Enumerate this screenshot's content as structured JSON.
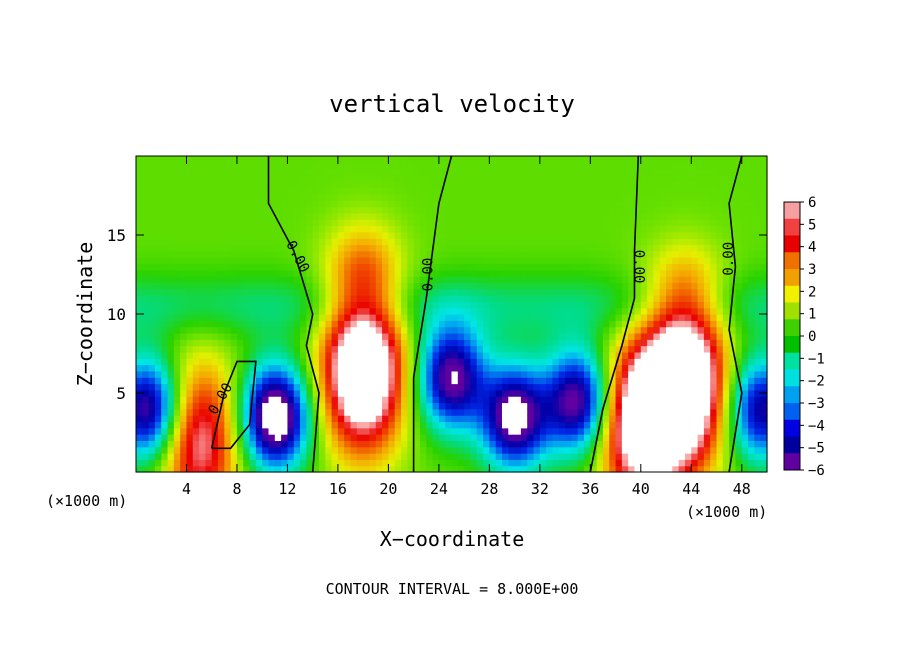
{
  "chart_data": {
    "type": "heatmap",
    "title": "vertical velocity",
    "xlabel": "X−coordinate",
    "ylabel": "Z−coordinate",
    "x_unit_left": "(×1000 m)",
    "x_unit_right": "(×1000 m)",
    "footer": "CONTOUR INTERVAL = 8.000E+00",
    "xlim": [
      0,
      50
    ],
    "ylim": [
      0,
      20
    ],
    "x_ticks": [
      4,
      8,
      12,
      16,
      20,
      24,
      28,
      32,
      36,
      40,
      44,
      48
    ],
    "y_ticks": [
      5,
      10,
      15
    ],
    "contour_label": "0.00",
    "colorbar": {
      "min": -6,
      "max": 6,
      "labels": [
        "6",
        "5",
        "4",
        "3",
        "2",
        "1",
        "0",
        "−1",
        "−2",
        "−3",
        "−4",
        "−5",
        "−6"
      ],
      "colors": [
        "#f4a0a0",
        "#f04040",
        "#e80000",
        "#f07000",
        "#f0a000",
        "#f0f000",
        "#a0e000",
        "#40d000",
        "#00c000",
        "#00e0a0",
        "#00e0e0",
        "#00a0f0",
        "#0060f0",
        "#0000e0",
        "#0000a0",
        "#6000a0"
      ]
    },
    "features": [
      {
        "x": 18.0,
        "z": 6.5,
        "w": 0.9
      },
      {
        "x": 43.5,
        "z": 5.5,
        "w": 0.9
      },
      {
        "x": 40.0,
        "z": 3.0,
        "w": 0.75
      },
      {
        "x": 11.0,
        "z": 3.5,
        "w": -0.85
      },
      {
        "x": 25.0,
        "z": 6.0,
        "w": -0.7
      },
      {
        "x": 30.0,
        "z": 3.5,
        "w": -0.75
      },
      {
        "x": 35.0,
        "z": 4.5,
        "w": -0.7
      },
      {
        "x": 1.0,
        "z": 4.0,
        "w": -0.7
      },
      {
        "x": 49.5,
        "z": 4.0,
        "w": -0.6
      },
      {
        "x": 5.0,
        "z": 2.0,
        "w": 0.55
      }
    ],
    "zero_contours": [
      [
        [
          14.0,
          0.0
        ],
        [
          14.5,
          5.0
        ],
        [
          13.5,
          8.0
        ],
        [
          14.0,
          10.0
        ],
        [
          12.5,
          14.0
        ],
        [
          10.5,
          17.0
        ],
        [
          10.5,
          20.0
        ]
      ],
      [
        [
          22.0,
          0.0
        ],
        [
          22.0,
          6.0
        ],
        [
          23.0,
          11.0
        ],
        [
          23.5,
          14.0
        ],
        [
          24.0,
          17.0
        ],
        [
          25.0,
          20.0
        ]
      ],
      [
        [
          36.0,
          0.0
        ],
        [
          37.0,
          4.0
        ],
        [
          38.5,
          8.0
        ],
        [
          39.5,
          11.0
        ],
        [
          39.5,
          14.0
        ],
        [
          39.8,
          20.0
        ]
      ],
      [
        [
          47.0,
          0.0
        ],
        [
          48.0,
          5.0
        ],
        [
          47.0,
          9.0
        ],
        [
          47.5,
          13.0
        ],
        [
          47.0,
          17.0
        ],
        [
          48.0,
          20.0
        ]
      ],
      [
        [
          6.0,
          1.5
        ],
        [
          7.0,
          5.0
        ],
        [
          8.0,
          7.0
        ],
        [
          9.5,
          7.0
        ],
        [
          9.0,
          3.0
        ],
        [
          7.5,
          1.5
        ],
        [
          6.0,
          1.5
        ]
      ]
    ],
    "contour_labels": [
      {
        "x": 12.5,
        "z": 13.5,
        "angle": 62
      },
      {
        "x": 23.5,
        "z": 12.5,
        "angle": -90
      },
      {
        "x": 39.5,
        "z": 13.0,
        "angle": 90
      },
      {
        "x": 47.3,
        "z": 13.5,
        "angle": -90
      },
      {
        "x": 7.0,
        "z": 4.5,
        "angle": -60
      }
    ]
  }
}
